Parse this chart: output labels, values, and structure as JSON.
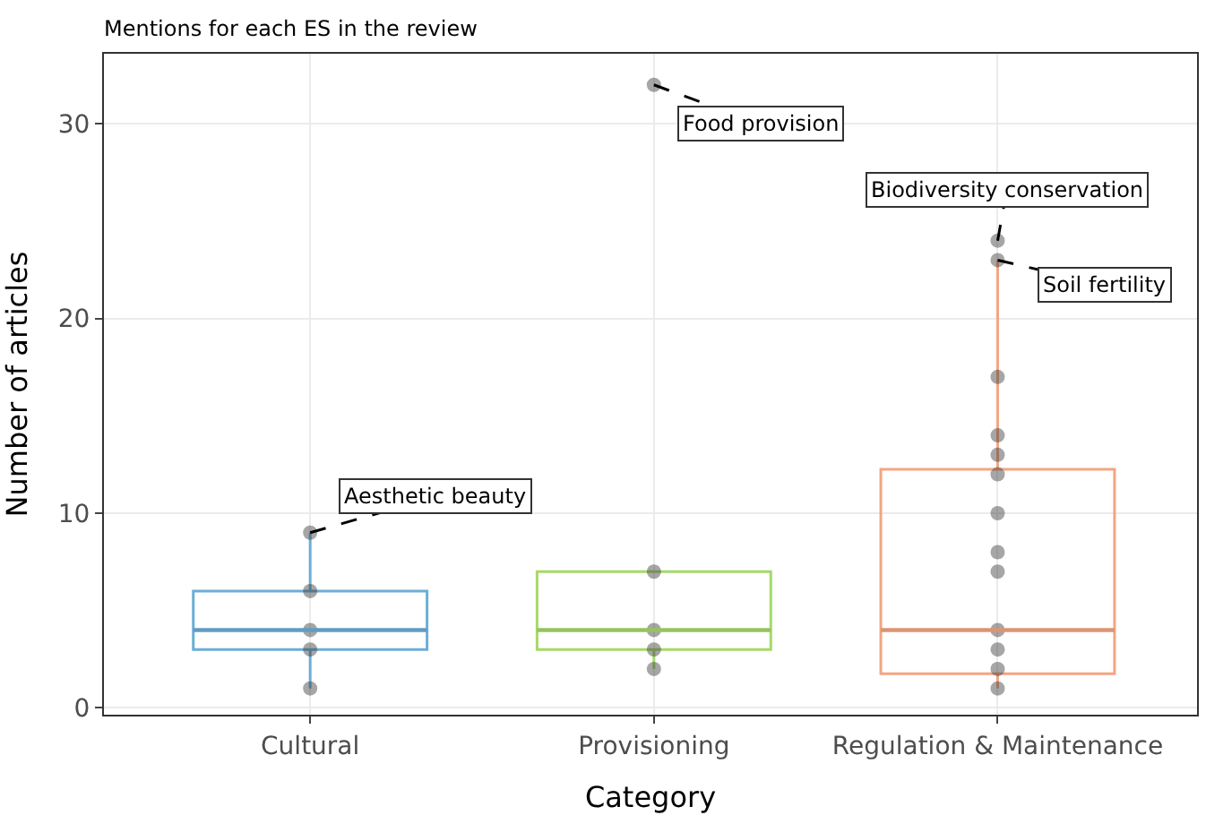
{
  "chart_data": {
    "type": "box",
    "title": "Mentions for each ES in the review",
    "xlabel": "Category",
    "ylabel": "Number of articles",
    "categories": [
      "Cultural",
      "Provisioning",
      "Regulation & Maintenance"
    ],
    "colors": [
      "#6baed6",
      "#a6d96a",
      "#f4a582"
    ],
    "boxes": [
      {
        "low": 1,
        "q1": 3,
        "median": 4,
        "q3": 6,
        "high": 9
      },
      {
        "low": 2,
        "q1": 3,
        "median": 4,
        "q3": 7,
        "high": 7
      },
      {
        "low": 1,
        "q1": 1.75,
        "median": 4,
        "q3": 12.25,
        "high": 23
      }
    ],
    "series": [
      {
        "type": "scatter",
        "color": "#3a3a3a",
        "x": [
          "Cultural",
          "Cultural",
          "Cultural",
          "Cultural",
          "Cultural",
          "Provisioning",
          "Provisioning",
          "Provisioning",
          "Provisioning",
          "Provisioning",
          "Regulation & Maintenance",
          "Regulation & Maintenance",
          "Regulation & Maintenance",
          "Regulation & Maintenance",
          "Regulation & Maintenance",
          "Regulation & Maintenance",
          "Regulation & Maintenance",
          "Regulation & Maintenance",
          "Regulation & Maintenance",
          "Regulation & Maintenance",
          "Regulation & Maintenance",
          "Regulation & Maintenance",
          "Regulation & Maintenance"
        ],
        "values": [
          9,
          6,
          4,
          3,
          1,
          32,
          7,
          4,
          3,
          2,
          24,
          23,
          17,
          14,
          13,
          12,
          10,
          8,
          7,
          4,
          3,
          2,
          1
        ]
      }
    ],
    "annotations": [
      {
        "text": "Aesthetic beauty",
        "x": "Cultural",
        "y": 9
      },
      {
        "text": "Food provision",
        "x": "Provisioning",
        "y": 32
      },
      {
        "text": "Biodiversity conservation",
        "x": "Regulation & Maintenance",
        "y": 24
      },
      {
        "text": "Soil fertility",
        "x": "Regulation & Maintenance",
        "y": 23
      }
    ],
    "ylim": [
      -0.35,
      33.6
    ],
    "yticks": [
      0,
      10,
      20,
      30
    ],
    "grid": true
  }
}
